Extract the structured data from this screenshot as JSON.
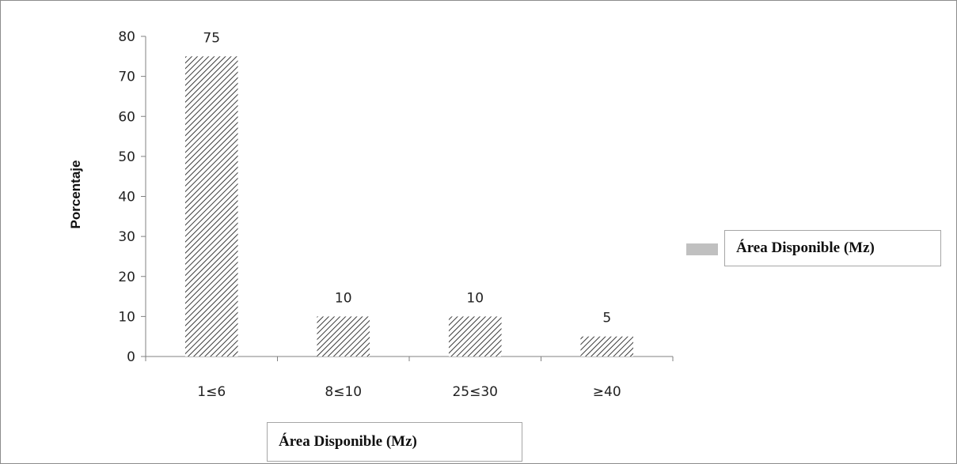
{
  "chart_data": {
    "type": "bar",
    "categories": [
      "1≤6",
      "8≤10",
      "25≤30",
      "≥40"
    ],
    "series": [
      {
        "name": "Área Disponible (Mz)",
        "values": [
          75,
          10,
          10,
          5
        ]
      }
    ],
    "data_labels": [
      "75",
      "10",
      "10",
      "5"
    ],
    "xlabel": "Área Disponible (Mz)",
    "ylabel": "Porcentaje",
    "ylim": [
      0,
      80
    ],
    "yticks": [
      0,
      10,
      20,
      30,
      40,
      50,
      60,
      70,
      80
    ],
    "grid": false,
    "legend_position": "right",
    "bar_pattern": "diagonal-hatch",
    "colors": {
      "bar_hatch": "#3a3a3a",
      "legend_swatch": "#c0c0c0",
      "axis": "#808080"
    }
  }
}
